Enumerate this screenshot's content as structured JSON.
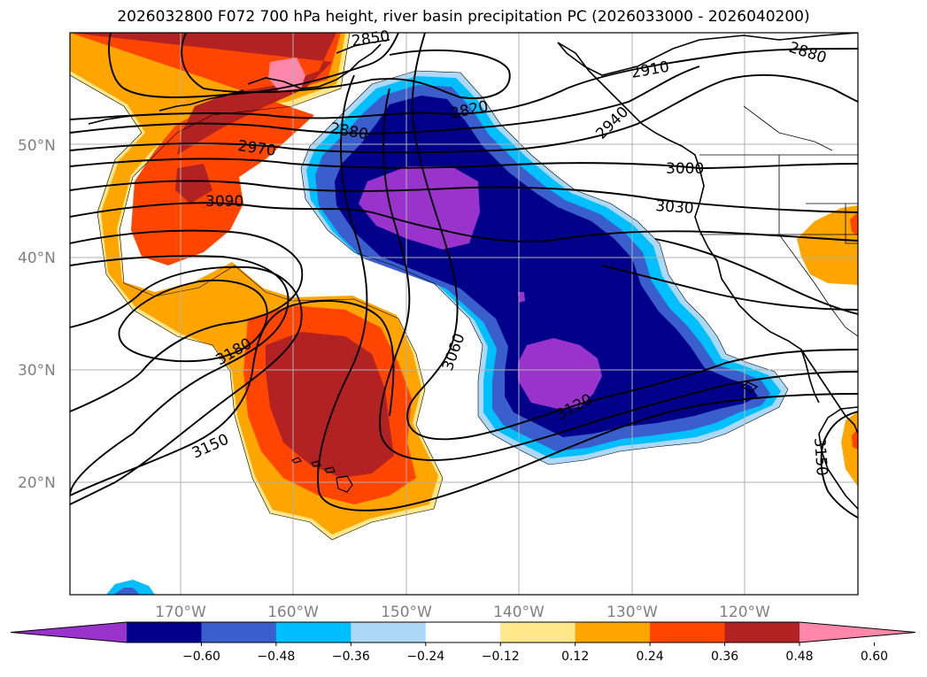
{
  "title": "2026032800 F072 700 hPa height, river basin precipitation PC (2026033000 - 2026040200)",
  "latitude_labels": [
    "50°N",
    "40°N",
    "30°N",
    "20°N"
  ],
  "longitude_labels": [
    "170°W",
    "160°W",
    "150°W",
    "140°W",
    "130°W",
    "120°W"
  ],
  "contour_labels": [
    "2850",
    "2820",
    "2880",
    "2910",
    "2880",
    "2940",
    "2970",
    "3000",
    "3090",
    "3030",
    "3060",
    "3180",
    "3120",
    "3150",
    "3150"
  ],
  "colorbar": {
    "tick_labels": [
      "−0.60",
      "−0.48",
      "−0.36",
      "−0.24",
      "−0.12",
      "0.12",
      "0.24",
      "0.36",
      "0.48",
      "0.60"
    ],
    "colors": [
      "#9933cc",
      "#00008b",
      "#3a5fcd",
      "#00bfff",
      "#add8f7",
      "#ffffff",
      "#ffe88a",
      "#ffa500",
      "#ff4500",
      "#b22222",
      "#ff88aa"
    ]
  },
  "fill_colors": {
    "neg_strong": "#9933cc",
    "neg_3": "#00008b",
    "neg_2": "#3a5fcd",
    "neg_1": "#00bfff",
    "neg_0": "#add8f7",
    "pos_0": "#ffe88a",
    "pos_1": "#ffa500",
    "pos_2": "#ff4500",
    "pos_3": "#b22222",
    "pos_strong": "#ff88aa"
  }
}
